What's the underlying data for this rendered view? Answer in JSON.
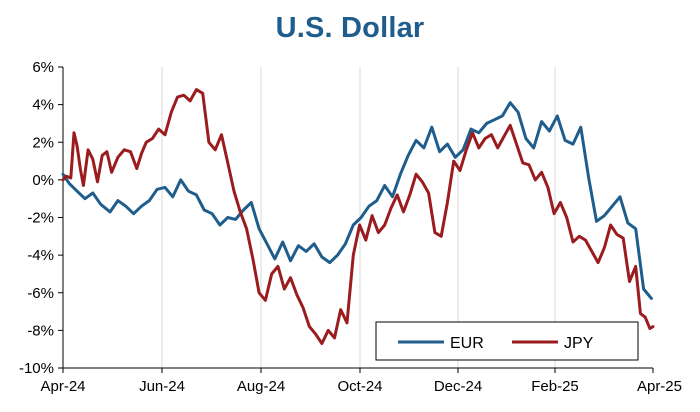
{
  "chart_data": {
    "type": "line",
    "title": "U.S. Dollar",
    "xlabel": "",
    "ylabel": "",
    "x_tick_labels": [
      "Apr-24",
      "Jun-24",
      "Aug-24",
      "Oct-24",
      "Dec-24",
      "Feb-25",
      "Apr-25"
    ],
    "y_tick_labels": [
      "6%",
      "4%",
      "2%",
      "0%",
      "-2%",
      "-4%",
      "-6%",
      "-8%",
      "-10%"
    ],
    "ylim": [
      -10,
      6
    ],
    "grid": "vertical-only",
    "legend_placement": "bottom-right",
    "series": [
      {
        "name": "EUR",
        "color": "#1f5d8c",
        "points": [
          [
            "2024-04-01",
            0.3
          ],
          [
            "2024-04-05",
            -0.2
          ],
          [
            "2024-04-10",
            -0.6
          ],
          [
            "2024-04-15",
            -1.0
          ],
          [
            "2024-04-20",
            -0.7
          ],
          [
            "2024-04-25",
            -1.3
          ],
          [
            "2024-05-01",
            -1.7
          ],
          [
            "2024-05-06",
            -1.1
          ],
          [
            "2024-05-11",
            -1.4
          ],
          [
            "2024-05-16",
            -1.8
          ],
          [
            "2024-05-21",
            -1.4
          ],
          [
            "2024-05-26",
            -1.1
          ],
          [
            "2024-05-31",
            -0.5
          ],
          [
            "2024-06-05",
            -0.4
          ],
          [
            "2024-06-10",
            -0.9
          ],
          [
            "2024-06-15",
            0.0
          ],
          [
            "2024-06-20",
            -0.6
          ],
          [
            "2024-06-25",
            -0.8
          ],
          [
            "2024-06-30",
            -1.6
          ],
          [
            "2024-07-05",
            -1.8
          ],
          [
            "2024-07-10",
            -2.4
          ],
          [
            "2024-07-15",
            -2.0
          ],
          [
            "2024-07-20",
            -2.1
          ],
          [
            "2024-07-25",
            -1.6
          ],
          [
            "2024-07-30",
            -1.2
          ],
          [
            "2024-08-04",
            -2.6
          ],
          [
            "2024-08-09",
            -3.4
          ],
          [
            "2024-08-14",
            -4.2
          ],
          [
            "2024-08-19",
            -3.3
          ],
          [
            "2024-08-24",
            -4.3
          ],
          [
            "2024-08-29",
            -3.5
          ],
          [
            "2024-09-03",
            -3.8
          ],
          [
            "2024-09-08",
            -3.4
          ],
          [
            "2024-09-13",
            -4.1
          ],
          [
            "2024-09-18",
            -4.4
          ],
          [
            "2024-09-23",
            -4.0
          ],
          [
            "2024-09-28",
            -3.4
          ],
          [
            "2024-10-03",
            -2.4
          ],
          [
            "2024-10-08",
            -2.0
          ],
          [
            "2024-10-13",
            -1.4
          ],
          [
            "2024-10-18",
            -1.1
          ],
          [
            "2024-10-23",
            -0.3
          ],
          [
            "2024-10-28",
            -0.9
          ],
          [
            "2024-11-02",
            0.3
          ],
          [
            "2024-11-07",
            1.3
          ],
          [
            "2024-11-12",
            2.1
          ],
          [
            "2024-11-17",
            1.7
          ],
          [
            "2024-11-22",
            2.8
          ],
          [
            "2024-11-27",
            1.5
          ],
          [
            "2024-12-02",
            1.9
          ],
          [
            "2024-12-07",
            1.2
          ],
          [
            "2024-12-12",
            1.6
          ],
          [
            "2024-12-17",
            2.7
          ],
          [
            "2024-12-22",
            2.5
          ],
          [
            "2024-12-27",
            3.0
          ],
          [
            "2025-01-01",
            3.2
          ],
          [
            "2025-01-06",
            3.4
          ],
          [
            "2025-01-11",
            4.1
          ],
          [
            "2025-01-16",
            3.6
          ],
          [
            "2025-01-21",
            2.2
          ],
          [
            "2025-01-26",
            1.7
          ],
          [
            "2025-01-31",
            3.1
          ],
          [
            "2025-02-05",
            2.6
          ],
          [
            "2025-02-10",
            3.4
          ],
          [
            "2025-02-15",
            2.1
          ],
          [
            "2025-02-20",
            1.9
          ],
          [
            "2025-02-25",
            2.8
          ],
          [
            "2025-03-02",
            0.1
          ],
          [
            "2025-03-07",
            -2.2
          ],
          [
            "2025-03-12",
            -1.9
          ],
          [
            "2025-03-17",
            -1.4
          ],
          [
            "2025-03-22",
            -0.9
          ],
          [
            "2025-03-27",
            -2.3
          ],
          [
            "2025-04-01",
            -2.6
          ],
          [
            "2025-04-06",
            -5.8
          ],
          [
            "2025-04-11",
            -6.3
          ]
        ]
      },
      {
        "name": "JPY",
        "color": "#9b1c1f",
        "points": [
          [
            "2024-04-01",
            0.0
          ],
          [
            "2024-04-03",
            0.2
          ],
          [
            "2024-04-06",
            0.1
          ],
          [
            "2024-04-08",
            2.5
          ],
          [
            "2024-04-10",
            1.8
          ],
          [
            "2024-04-12",
            0.6
          ],
          [
            "2024-04-14",
            -0.3
          ],
          [
            "2024-04-17",
            1.6
          ],
          [
            "2024-04-20",
            1.1
          ],
          [
            "2024-04-23",
            -0.1
          ],
          [
            "2024-04-26",
            1.3
          ],
          [
            "2024-04-29",
            1.5
          ],
          [
            "2024-05-02",
            0.4
          ],
          [
            "2024-05-06",
            1.2
          ],
          [
            "2024-05-10",
            1.6
          ],
          [
            "2024-05-14",
            1.5
          ],
          [
            "2024-05-18",
            0.6
          ],
          [
            "2024-05-21",
            1.4
          ],
          [
            "2024-05-24",
            2.0
          ],
          [
            "2024-05-28",
            2.2
          ],
          [
            "2024-06-01",
            2.7
          ],
          [
            "2024-06-05",
            2.4
          ],
          [
            "2024-06-09",
            3.6
          ],
          [
            "2024-06-13",
            4.4
          ],
          [
            "2024-06-17",
            4.5
          ],
          [
            "2024-06-21",
            4.2
          ],
          [
            "2024-06-25",
            4.8
          ],
          [
            "2024-06-29",
            4.6
          ],
          [
            "2024-07-03",
            2.0
          ],
          [
            "2024-07-07",
            1.6
          ],
          [
            "2024-07-11",
            2.4
          ],
          [
            "2024-07-15",
            0.9
          ],
          [
            "2024-07-19",
            -0.6
          ],
          [
            "2024-07-23",
            -1.7
          ],
          [
            "2024-07-27",
            -2.6
          ],
          [
            "2024-07-31",
            -4.2
          ],
          [
            "2024-08-04",
            -6.0
          ],
          [
            "2024-08-08",
            -6.4
          ],
          [
            "2024-08-12",
            -5.0
          ],
          [
            "2024-08-16",
            -4.6
          ],
          [
            "2024-08-20",
            -5.8
          ],
          [
            "2024-08-24",
            -5.2
          ],
          [
            "2024-08-28",
            -6.1
          ],
          [
            "2024-09-01",
            -6.8
          ],
          [
            "2024-09-05",
            -7.8
          ],
          [
            "2024-09-09",
            -8.2
          ],
          [
            "2024-09-13",
            -8.7
          ],
          [
            "2024-09-17",
            -8.0
          ],
          [
            "2024-09-21",
            -8.4
          ],
          [
            "2024-09-25",
            -6.9
          ],
          [
            "2024-09-29",
            -7.6
          ],
          [
            "2024-10-03",
            -4.0
          ],
          [
            "2024-10-07",
            -2.4
          ],
          [
            "2024-10-11",
            -3.2
          ],
          [
            "2024-10-15",
            -1.9
          ],
          [
            "2024-10-19",
            -2.8
          ],
          [
            "2024-10-23",
            -2.4
          ],
          [
            "2024-10-27",
            -1.5
          ],
          [
            "2024-10-31",
            -0.8
          ],
          [
            "2024-11-04",
            -1.7
          ],
          [
            "2024-11-08",
            -0.8
          ],
          [
            "2024-11-12",
            0.3
          ],
          [
            "2024-11-16",
            -0.1
          ],
          [
            "2024-11-20",
            -0.7
          ],
          [
            "2024-11-24",
            -2.8
          ],
          [
            "2024-11-28",
            -3.0
          ],
          [
            "2024-12-02",
            -1.2
          ],
          [
            "2024-12-06",
            1.0
          ],
          [
            "2024-12-10",
            0.5
          ],
          [
            "2024-12-14",
            1.6
          ],
          [
            "2024-12-18",
            2.5
          ],
          [
            "2024-12-22",
            1.7
          ],
          [
            "2024-12-26",
            2.2
          ],
          [
            "2024-12-30",
            2.4
          ],
          [
            "2025-01-03",
            1.7
          ],
          [
            "2025-01-07",
            2.3
          ],
          [
            "2025-01-11",
            2.9
          ],
          [
            "2025-01-15",
            1.9
          ],
          [
            "2025-01-19",
            0.9
          ],
          [
            "2025-01-23",
            0.8
          ],
          [
            "2025-01-27",
            0.0
          ],
          [
            "2025-01-31",
            0.4
          ],
          [
            "2025-02-04",
            -0.4
          ],
          [
            "2025-02-08",
            -1.8
          ],
          [
            "2025-02-12",
            -1.2
          ],
          [
            "2025-02-16",
            -2.0
          ],
          [
            "2025-02-20",
            -3.3
          ],
          [
            "2025-02-24",
            -3.0
          ],
          [
            "2025-02-28",
            -3.2
          ],
          [
            "2025-03-04",
            -3.8
          ],
          [
            "2025-03-08",
            -4.4
          ],
          [
            "2025-03-12",
            -3.6
          ],
          [
            "2025-03-16",
            -2.4
          ],
          [
            "2025-03-20",
            -2.9
          ],
          [
            "2025-03-24",
            -3.1
          ],
          [
            "2025-03-28",
            -5.4
          ],
          [
            "2025-04-01",
            -4.6
          ],
          [
            "2025-04-04",
            -7.1
          ],
          [
            "2025-04-07",
            -7.3
          ],
          [
            "2025-04-10",
            -7.9
          ],
          [
            "2025-04-12",
            -7.8
          ]
        ]
      }
    ]
  }
}
